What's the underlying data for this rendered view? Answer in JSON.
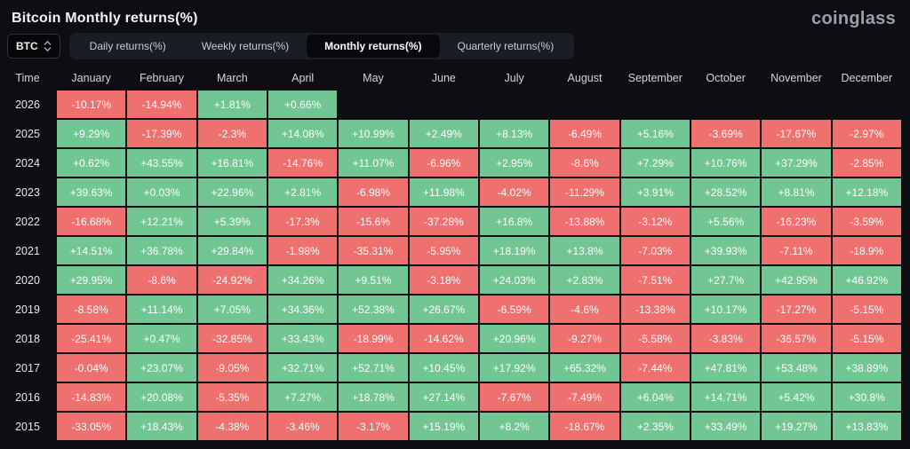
{
  "header": {
    "title": "Bitcoin Monthly returns(%)",
    "logo": "coinglass"
  },
  "controls": {
    "symbol_select": {
      "value": "BTC"
    },
    "tabs": [
      {
        "label": "Daily returns(%)",
        "active": false
      },
      {
        "label": "Weekly returns(%)",
        "active": false
      },
      {
        "label": "Monthly returns(%)",
        "active": true
      },
      {
        "label": "Quarterly returns(%)",
        "active": false
      }
    ]
  },
  "chart_data": {
    "type": "heatmap",
    "title": "Bitcoin Monthly returns(%)",
    "columns": [
      "Time",
      "January",
      "February",
      "March",
      "April",
      "May",
      "June",
      "July",
      "August",
      "September",
      "October",
      "November",
      "December"
    ],
    "colors": {
      "positive": "#71c693",
      "negative": "#ee706f"
    },
    "rows": [
      {
        "year": "2026",
        "values": [
          "-10.17%",
          "-14.94%",
          "+1.81%",
          "+0.66%",
          "",
          "",
          "",
          "",
          "",
          "",
          "",
          ""
        ]
      },
      {
        "year": "2025",
        "values": [
          "+9.29%",
          "-17.39%",
          "-2.3%",
          "+14.08%",
          "+10.99%",
          "+2.49%",
          "+8.13%",
          "-6.49%",
          "+5.16%",
          "-3.69%",
          "-17.67%",
          "-2.97%"
        ]
      },
      {
        "year": "2024",
        "values": [
          "+0.62%",
          "+43.55%",
          "+16.81%",
          "-14.76%",
          "+11.07%",
          "-6.96%",
          "+2.95%",
          "-8.6%",
          "+7.29%",
          "+10.76%",
          "+37.29%",
          "-2.85%"
        ]
      },
      {
        "year": "2023",
        "values": [
          "+39.63%",
          "+0.03%",
          "+22.96%",
          "+2.81%",
          "-6.98%",
          "+11.98%",
          "-4.02%",
          "-11.29%",
          "+3.91%",
          "+28.52%",
          "+8.81%",
          "+12.18%"
        ]
      },
      {
        "year": "2022",
        "values": [
          "-16.68%",
          "+12.21%",
          "+5.39%",
          "-17.3%",
          "-15.6%",
          "-37.28%",
          "+16.8%",
          "-13.88%",
          "-3.12%",
          "+5.56%",
          "-16.23%",
          "-3.59%"
        ]
      },
      {
        "year": "2021",
        "values": [
          "+14.51%",
          "+36.78%",
          "+29.84%",
          "-1.98%",
          "-35.31%",
          "-5.95%",
          "+18.19%",
          "+13.8%",
          "-7.03%",
          "+39.93%",
          "-7.11%",
          "-18.9%"
        ]
      },
      {
        "year": "2020",
        "values": [
          "+29.95%",
          "-8.6%",
          "-24.92%",
          "+34.26%",
          "+9.51%",
          "-3.18%",
          "+24.03%",
          "+2.83%",
          "-7.51%",
          "+27.7%",
          "+42.95%",
          "+46.92%"
        ]
      },
      {
        "year": "2019",
        "values": [
          "-8.58%",
          "+11.14%",
          "+7.05%",
          "+34.36%",
          "+52.38%",
          "+26.67%",
          "-6.59%",
          "-4.6%",
          "-13.38%",
          "+10.17%",
          "-17.27%",
          "-5.15%"
        ]
      },
      {
        "year": "2018",
        "values": [
          "-25.41%",
          "+0.47%",
          "-32.85%",
          "+33.43%",
          "-18.99%",
          "-14.62%",
          "+20.96%",
          "-9.27%",
          "-5.58%",
          "-3.83%",
          "-36.57%",
          "-5.15%"
        ]
      },
      {
        "year": "2017",
        "values": [
          "-0.04%",
          "+23.07%",
          "-9.05%",
          "+32.71%",
          "+52.71%",
          "+10.45%",
          "+17.92%",
          "+65.32%",
          "-7.44%",
          "+47.81%",
          "+53.48%",
          "+38.89%"
        ]
      },
      {
        "year": "2016",
        "values": [
          "-14.83%",
          "+20.08%",
          "-5.35%",
          "+7.27%",
          "+18.78%",
          "+27.14%",
          "-7.67%",
          "-7.49%",
          "+6.04%",
          "+14.71%",
          "+5.42%",
          "+30.8%"
        ]
      },
      {
        "year": "2015",
        "values": [
          "-33.05%",
          "+18.43%",
          "-4.38%",
          "-3.46%",
          "-3.17%",
          "+15.19%",
          "+8.2%",
          "-18.67%",
          "+2.35%",
          "+33.49%",
          "+19.27%",
          "+13.83%"
        ]
      }
    ]
  }
}
